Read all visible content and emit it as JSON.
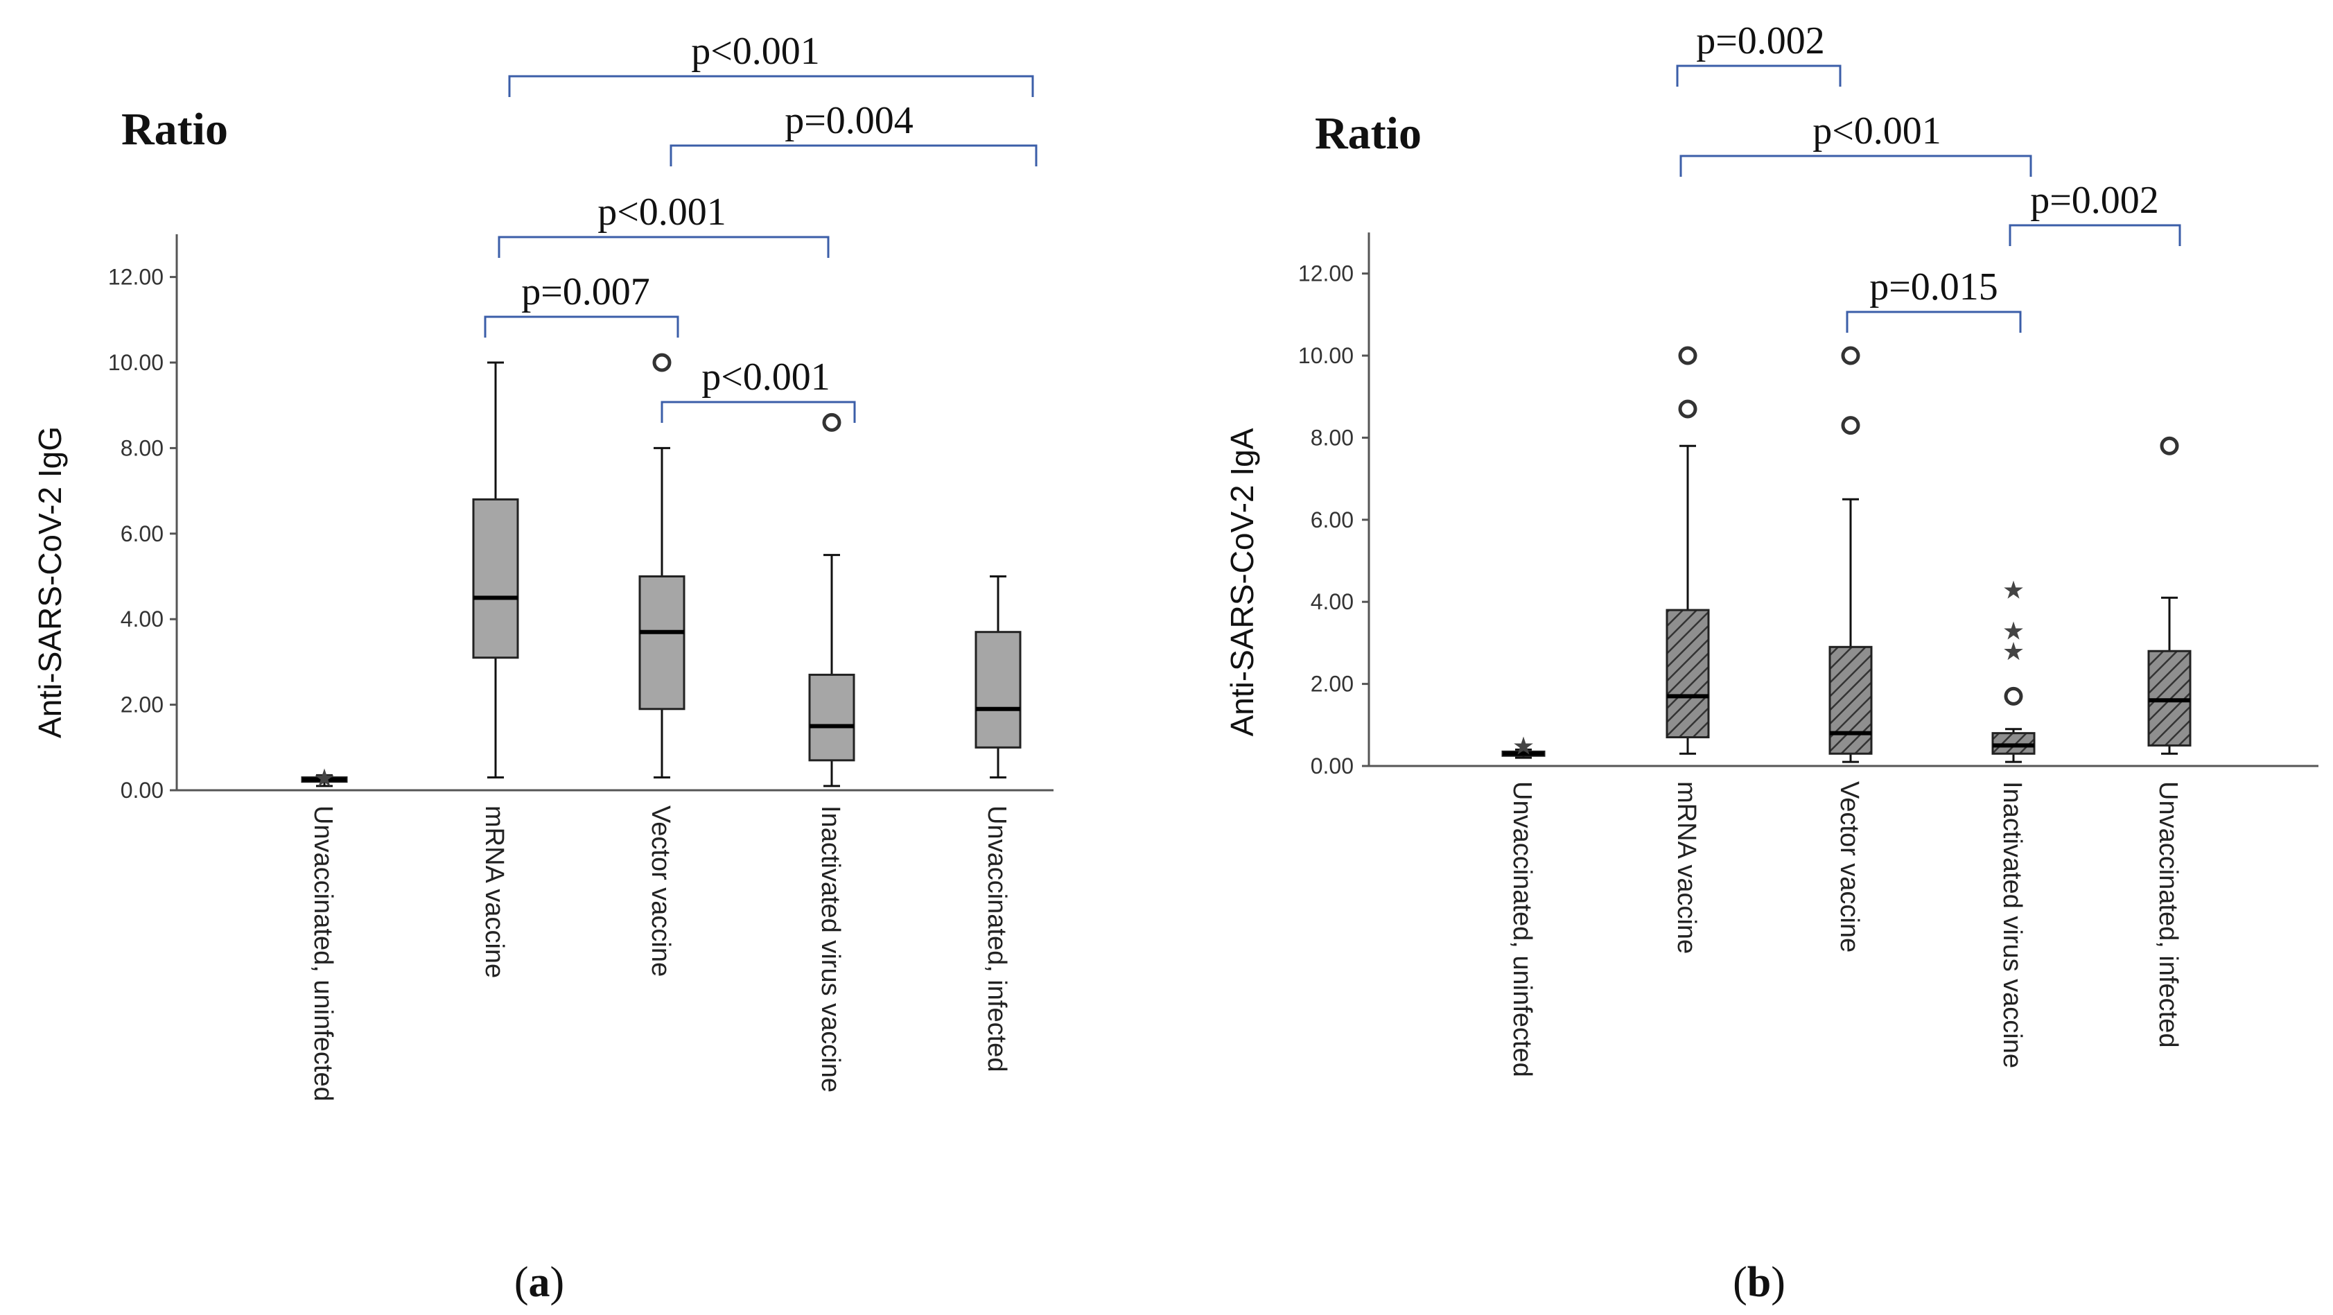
{
  "figure": {
    "ratio_label": "Ratio",
    "label_a_open": "(",
    "label_a_letter": "a",
    "label_a_close": ")",
    "label_b_open": "(",
    "label_b_letter": "b",
    "label_b_close": ")"
  },
  "colors": {
    "bracket": "#3b5ea8",
    "box_fill_a": "#a6a6a6",
    "box_fill_b": "#8f8f8f",
    "hatch": "#333333"
  },
  "chart_data": [
    {
      "type": "box",
      "panel": "a",
      "title": "Ratio",
      "ylabel": "Anti-SARS-CoV-2 IgG",
      "ylim": [
        0,
        13
      ],
      "yticks": [
        0,
        2,
        4,
        6,
        8,
        10,
        12
      ],
      "ytick_labels": [
        "0.00",
        "2.00",
        "4.00",
        "6.00",
        "8.00",
        "10.00",
        "12.00"
      ],
      "categories": [
        "Unvaccinated, uninfected",
        "mRNA vaccine",
        "Vector vaccine",
        "Inactivated virus vaccine",
        "Unvaccinated, infected"
      ],
      "boxes": [
        {
          "min": 0.1,
          "q1": 0.2,
          "median": 0.25,
          "q3": 0.3,
          "max": 0.35
        },
        {
          "min": 0.3,
          "q1": 3.1,
          "median": 4.5,
          "q3": 6.8,
          "max": 10.0
        },
        {
          "min": 0.3,
          "q1": 1.9,
          "median": 3.7,
          "q3": 5.0,
          "max": 8.0
        },
        {
          "min": 0.1,
          "q1": 0.7,
          "median": 1.5,
          "q3": 2.7,
          "max": 5.5
        },
        {
          "min": 0.3,
          "q1": 1.0,
          "median": 1.9,
          "q3": 3.7,
          "max": 5.0
        }
      ],
      "outliers": [
        {
          "category": 2,
          "value": 10.0
        },
        {
          "category": 3,
          "value": 8.6
        }
      ],
      "extremes": [
        {
          "category": 0,
          "value": 0.3
        }
      ],
      "comparisons": [
        {
          "from": 1,
          "to": 4,
          "label": "p<0.001"
        },
        {
          "from": 2,
          "to": 4,
          "label": "p=0.004"
        },
        {
          "from": 1,
          "to": 3,
          "label": "p<0.001"
        },
        {
          "from": 1,
          "to": 2,
          "label": "p=0.007"
        },
        {
          "from": 2,
          "to": 3,
          "label": "p<0.001"
        }
      ]
    },
    {
      "type": "box",
      "panel": "b",
      "title": "Ratio",
      "ylabel": "Anti-SARS-CoV-2 IgA",
      "ylim": [
        0,
        13
      ],
      "yticks": [
        0,
        2,
        4,
        6,
        8,
        10,
        12
      ],
      "ytick_labels": [
        "0.00",
        "2.00",
        "4.00",
        "6.00",
        "8.00",
        "10.00",
        "12.00"
      ],
      "categories": [
        "Unvaccinated, uninfected",
        "mRNA vaccine",
        "Vector vaccine",
        "Inactivated virus vaccine",
        "Unvaccinated, infected"
      ],
      "boxes": [
        {
          "min": 0.2,
          "q1": 0.25,
          "median": 0.3,
          "q3": 0.35,
          "max": 0.4
        },
        {
          "min": 0.3,
          "q1": 0.7,
          "median": 1.7,
          "q3": 3.8,
          "max": 7.8
        },
        {
          "min": 0.1,
          "q1": 0.3,
          "median": 0.8,
          "q3": 2.9,
          "max": 6.5
        },
        {
          "min": 0.1,
          "q1": 0.3,
          "median": 0.5,
          "q3": 0.8,
          "max": 0.9
        },
        {
          "min": 0.3,
          "q1": 0.5,
          "median": 1.6,
          "q3": 2.8,
          "max": 4.1
        }
      ],
      "outliers": [
        {
          "category": 1,
          "value": 10.0
        },
        {
          "category": 1,
          "value": 8.7
        },
        {
          "category": 2,
          "value": 10.0
        },
        {
          "category": 2,
          "value": 8.3
        },
        {
          "category": 3,
          "value": 1.7
        },
        {
          "category": 4,
          "value": 7.8
        }
      ],
      "extremes": [
        {
          "category": 0,
          "value": 0.5
        },
        {
          "category": 3,
          "value": 4.3
        },
        {
          "category": 3,
          "value": 3.3
        },
        {
          "category": 3,
          "value": 2.8
        }
      ],
      "comparisons": [
        {
          "from": 1,
          "to": 2,
          "label": "p=0.002"
        },
        {
          "from": 1,
          "to": 3,
          "label": "p<0.001"
        },
        {
          "from": 3,
          "to": 4,
          "label": "p=0.002"
        },
        {
          "from": 2,
          "to": 3,
          "label": "p=0.015"
        }
      ]
    }
  ]
}
